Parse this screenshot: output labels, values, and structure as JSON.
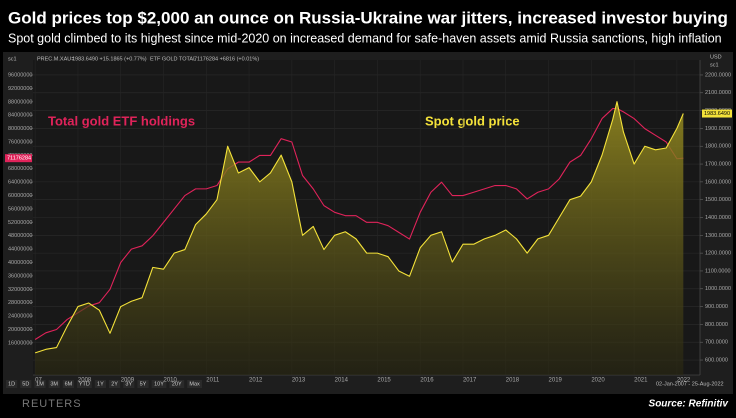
{
  "chart_data": {
    "type": "line",
    "title": "Gold prices top $2,000 an ounce on Russia-Ukraine war jitters, increased investor buying",
    "subtitle": "Spot gold climbed to its highest since mid-2020 on increased demand for  safe-haven assets amid Russia sanctions, high inflation",
    "annotations": [
      "Total gold ETF holdings",
      "Spot gold price"
    ],
    "y_axis_label": "sc1",
    "y2_axis_unit": "USD",
    "y2_axis_label": "sc1",
    "legend_items": [
      "1983.6490 +15.1865 (+0.77%)",
      "71176284 +6816 (+0.01%)"
    ],
    "toolbar": [
      "1D",
      "5D",
      "1M",
      "3M",
      "6M",
      "YTD",
      "1Y",
      "2Y",
      "3Y",
      "5Y",
      "10Y",
      "20Y",
      "Max"
    ],
    "date_range": "02-Jan-2007 - 25-Aug-2022",
    "brand": "REUTERS",
    "source": "Source: Refinitiv",
    "x": [
      2007,
      2007.25,
      2007.5,
      2007.75,
      2008,
      2008.25,
      2008.5,
      2008.75,
      2009,
      2009.25,
      2009.5,
      2009.75,
      2010,
      2010.25,
      2010.5,
      2010.75,
      2011,
      2011.25,
      2011.5,
      2011.75,
      2012,
      2012.25,
      2012.5,
      2012.75,
      2013,
      2013.25,
      2013.5,
      2013.75,
      2014,
      2014.25,
      2014.5,
      2014.75,
      2015,
      2015.25,
      2015.5,
      2015.75,
      2016,
      2016.25,
      2016.5,
      2016.75,
      2017,
      2017.25,
      2017.5,
      2017.75,
      2018,
      2018.25,
      2018.5,
      2018.75,
      2019,
      2019.25,
      2019.5,
      2019.75,
      2020,
      2020.25,
      2020.5,
      2020.6,
      2020.75,
      2021,
      2021.25,
      2021.5,
      2021.75,
      2022,
      2022.15
    ],
    "xlim": [
      2006.95,
      2022.54
    ],
    "xticks": [
      {
        "value": 2007,
        "label": "07"
      },
      2008,
      2009,
      2010,
      2011,
      2012,
      2013,
      2014,
      2015,
      2016,
      2017,
      2018,
      2019,
      2020,
      2021,
      2022
    ],
    "ylim": [
      6400000,
      100500000
    ],
    "yticks": [
      16000000,
      20000000,
      24000000,
      28000000,
      32000000,
      36000000,
      40000000,
      44000000,
      48000000,
      52000000,
      56000000,
      60000000,
      64000000,
      68000000,
      72000000,
      76000000,
      80000000,
      84000000,
      88000000,
      92000000,
      96000000
    ],
    "y2lim": [
      516,
      2284
    ],
    "y2ticks": [
      {
        "value": 600,
        "label": "600.0000"
      },
      {
        "value": 700,
        "label": "700.0000"
      },
      {
        "value": 800,
        "label": "800.0000"
      },
      {
        "value": 900,
        "label": "900.0000"
      },
      {
        "value": 1000,
        "label": "1000.0000"
      },
      {
        "value": 1100,
        "label": "1100.0000"
      },
      {
        "value": 1200,
        "label": "1200.0000"
      },
      {
        "value": 1300,
        "label": "1300.0000"
      },
      {
        "value": 1400,
        "label": "1400.0000"
      },
      {
        "value": 1500,
        "label": "1500.0000"
      },
      {
        "value": 1600,
        "label": "1600.0000"
      },
      {
        "value": 1700,
        "label": "1700.0000"
      },
      {
        "value": 1800,
        "label": "1800.0000"
      },
      {
        "value": 1900,
        "label": "1900.0000"
      },
      {
        "value": 2000,
        "label": "2000.0000"
      },
      {
        "value": 2100,
        "label": "2100.0000"
      },
      {
        "value": 2200,
        "label": "2200.0000"
      }
    ],
    "grid": true,
    "series": [
      {
        "name": "PREC.M.XAU=",
        "color": "#f4e23a",
        "axis": "y2",
        "area": true,
        "values": [
          640,
          660,
          670,
          790,
          900,
          920,
          880,
          750,
          900,
          930,
          950,
          1120,
          1110,
          1200,
          1220,
          1360,
          1420,
          1500,
          1800,
          1650,
          1680,
          1600,
          1650,
          1750,
          1600,
          1300,
          1350,
          1220,
          1300,
          1320,
          1280,
          1200,
          1200,
          1180,
          1100,
          1070,
          1230,
          1300,
          1320,
          1150,
          1250,
          1250,
          1280,
          1300,
          1330,
          1280,
          1200,
          1280,
          1300,
          1400,
          1500,
          1520,
          1600,
          1750,
          1950,
          2050,
          1880,
          1700,
          1800,
          1780,
          1790,
          1900,
          1983.649
        ],
        "value_labels": [
          null,
          null,
          null,
          null,
          null,
          null,
          null,
          null,
          null,
          null,
          null,
          null,
          null,
          null,
          null,
          null,
          null,
          null,
          null,
          null,
          null,
          null,
          null,
          null,
          null,
          null,
          null,
          null,
          null,
          null,
          null,
          null,
          null,
          null,
          null,
          null,
          null,
          null,
          null,
          null,
          null,
          null,
          null,
          null,
          null,
          null,
          null,
          null,
          null,
          null,
          null,
          null,
          null,
          null,
          null,
          null,
          null,
          null,
          null,
          null,
          null,
          null,
          "1983.6490"
        ]
      },
      {
        "name": "ETF GOLD TOTAL",
        "color": "#e0235a",
        "axis": "y",
        "values": [
          17000000,
          19000000,
          20000000,
          23000000,
          25000000,
          27000000,
          28000000,
          32000000,
          40000000,
          44000000,
          45000000,
          48000000,
          52000000,
          56000000,
          60000000,
          62000000,
          62000000,
          63000000,
          68000000,
          70000000,
          70000000,
          72000000,
          72000000,
          77000000,
          76000000,
          66000000,
          62000000,
          57000000,
          55000000,
          54000000,
          54000000,
          52000000,
          52000000,
          51000000,
          49000000,
          47000000,
          55000000,
          61000000,
          64000000,
          60000000,
          60000000,
          61000000,
          62000000,
          63000000,
          63000000,
          62000000,
          59000000,
          61000000,
          62000000,
          65000000,
          70000000,
          72000000,
          77000000,
          83000000,
          86000000,
          86000000,
          85000000,
          83000000,
          80000000,
          78000000,
          76000000,
          71000000,
          71176284
        ]
      }
    ]
  }
}
